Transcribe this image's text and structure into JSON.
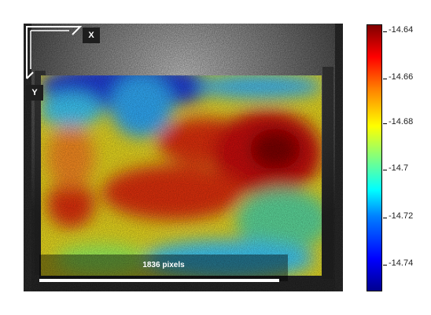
{
  "overlay": {
    "x_axis_label": "X",
    "y_axis_label": "Y",
    "scale_bar_label": "1836 pixels"
  },
  "colorbar": {
    "ticks": [
      "-14.64",
      "-14.66",
      "-14.68",
      "-14.7",
      "-14.72",
      "-14.74"
    ],
    "colormap": "jet"
  }
}
